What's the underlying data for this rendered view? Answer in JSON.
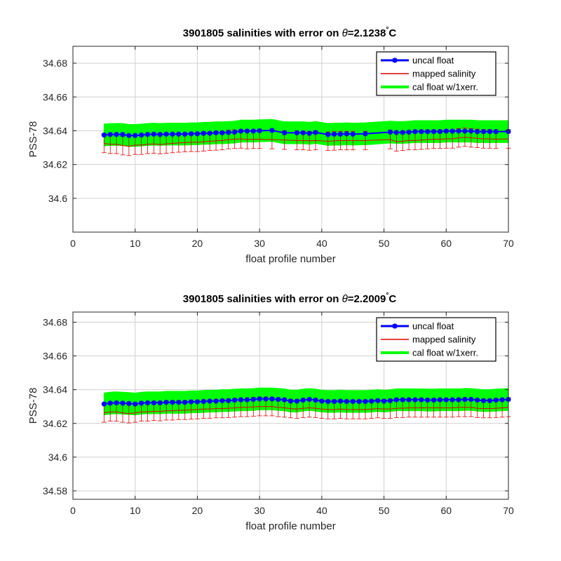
{
  "colors": {
    "uncal": "#0000ff",
    "mapped": "#e00000",
    "cal": "#00ff00",
    "grid": "#d0d0d0",
    "axis": "#262626"
  },
  "chart_data": [
    {
      "type": "line",
      "title_prefix": "3901805 salinities with error on ",
      "title_theta": "θ",
      "title_value": "=2.1238",
      "title_deg": "°",
      "title_unit": "C",
      "xlabel": "float profile number",
      "ylabel": "PSS-78",
      "xlim": [
        0,
        70
      ],
      "ylim": [
        34.58,
        34.69
      ],
      "xticks": [
        0,
        10,
        20,
        30,
        40,
        50,
        60,
        70
      ],
      "yticks": [
        34.6,
        34.62,
        34.64,
        34.66,
        34.68
      ],
      "ytick_labels": [
        "34.6",
        "34.62",
        "34.64",
        "34.66",
        "34.68"
      ],
      "grid": true,
      "legend": {
        "placement": "top-right",
        "entries": [
          "uncal float",
          "mapped salinity",
          "cal float w/1xerr."
        ]
      },
      "x": [
        5,
        6,
        7,
        8,
        9,
        10,
        11,
        12,
        13,
        14,
        15,
        16,
        17,
        18,
        19,
        20,
        21,
        22,
        23,
        24,
        25,
        26,
        27,
        28,
        29,
        30,
        32,
        34,
        36,
        37,
        38,
        39,
        41,
        42,
        43,
        44,
        45,
        47,
        51,
        52,
        53,
        54,
        55,
        56,
        57,
        58,
        59,
        60,
        61,
        62,
        63,
        64,
        65,
        66,
        67,
        68,
        70
      ],
      "uncal": [
        34.6375,
        34.6378,
        34.6378,
        34.6378,
        34.6372,
        34.6372,
        34.6375,
        34.6378,
        34.638,
        34.6378,
        34.638,
        34.638,
        34.638,
        34.638,
        34.6382,
        34.6382,
        34.6385,
        34.6385,
        34.6388,
        34.6388,
        34.639,
        34.6392,
        34.6398,
        34.6398,
        34.6398,
        34.64,
        34.6402,
        34.6388,
        34.6388,
        34.6388,
        34.6385,
        34.639,
        34.6378,
        34.638,
        34.638,
        34.6382,
        34.638,
        34.6382,
        34.6392,
        34.639,
        34.639,
        34.6392,
        34.6395,
        34.6395,
        34.6395,
        34.6395,
        34.6395,
        34.6398,
        34.6398,
        34.6398,
        34.6398,
        34.6398,
        34.6395,
        34.6395,
        34.6395,
        34.6395,
        34.6395
      ],
      "mapped": [
        34.6325,
        34.632,
        34.632,
        34.6312,
        34.6308,
        34.6315,
        34.6315,
        34.632,
        34.6322,
        34.6318,
        34.6322,
        34.6325,
        34.6328,
        34.633,
        34.6332,
        34.6332,
        34.6335,
        34.6338,
        34.634,
        34.6342,
        34.6348,
        34.635,
        34.6352,
        34.6348,
        34.635,
        34.635,
        34.6348,
        34.6345,
        34.6342,
        34.6342,
        34.634,
        34.6342,
        34.6338,
        34.634,
        34.6342,
        34.6342,
        34.6342,
        34.6342,
        34.6348,
        34.6335,
        34.6338,
        34.6342,
        34.6342,
        34.6345,
        34.6348,
        34.635,
        34.635,
        34.6352,
        34.6352,
        34.6358,
        34.6362,
        34.6358,
        34.6355,
        34.6352,
        34.6352,
        34.635,
        34.6352
      ],
      "mapped_err": 0.0055,
      "cal_err": 0.0065
    },
    {
      "type": "line",
      "title_prefix": "3901805 salinities with error on ",
      "title_theta": "θ",
      "title_value": "=2.2009",
      "title_deg": "°",
      "title_unit": "C",
      "xlabel": "float profile number",
      "ylabel": "PSS-78",
      "xlim": [
        0,
        70
      ],
      "ylim": [
        34.575,
        34.686
      ],
      "xticks": [
        0,
        10,
        20,
        30,
        40,
        50,
        60,
        70
      ],
      "yticks": [
        34.58,
        34.6,
        34.62,
        34.64,
        34.66,
        34.68
      ],
      "ytick_labels": [
        "34.58",
        "34.6",
        "34.62",
        "34.64",
        "34.66",
        "34.68"
      ],
      "grid": true,
      "legend": {
        "placement": "top-right",
        "entries": [
          "uncal float",
          "mapped salinity",
          "cal float w/1xerr."
        ]
      },
      "x": [
        5,
        6,
        7,
        8,
        9,
        10,
        11,
        12,
        13,
        14,
        15,
        16,
        17,
        18,
        19,
        20,
        21,
        22,
        23,
        24,
        25,
        26,
        27,
        28,
        29,
        30,
        31,
        32,
        33,
        34,
        35,
        36,
        37,
        38,
        39,
        40,
        41,
        42,
        43,
        44,
        45,
        46,
        47,
        48,
        49,
        50,
        51,
        52,
        53,
        54,
        55,
        56,
        57,
        58,
        59,
        60,
        61,
        62,
        63,
        64,
        65,
        66,
        67,
        68,
        69,
        70
      ],
      "uncal": [
        34.6315,
        34.632,
        34.6322,
        34.632,
        34.6318,
        34.6315,
        34.632,
        34.6322,
        34.6322,
        34.6322,
        34.6325,
        34.6325,
        34.6325,
        34.6325,
        34.6328,
        34.6328,
        34.633,
        34.6332,
        34.6332,
        34.6335,
        34.6335,
        34.6338,
        34.634,
        34.634,
        34.6342,
        34.6345,
        34.6345,
        34.6345,
        34.6342,
        34.634,
        34.6332,
        34.6332,
        34.6338,
        34.6342,
        34.6338,
        34.6332,
        34.633,
        34.633,
        34.6332,
        34.633,
        34.633,
        34.633,
        34.633,
        34.6332,
        34.6335,
        34.6332,
        34.6335,
        34.634,
        34.634,
        34.634,
        34.634,
        34.634,
        34.6338,
        34.6338,
        34.634,
        34.634,
        34.634,
        34.634,
        34.6342,
        34.6342,
        34.6338,
        34.6335,
        34.6335,
        34.6338,
        34.634,
        34.6342
      ],
      "mapped": [
        34.6262,
        34.6268,
        34.6268,
        34.6262,
        34.6258,
        34.6262,
        34.6268,
        34.6268,
        34.6272,
        34.627,
        34.6275,
        34.6275,
        34.6278,
        34.6278,
        34.628,
        34.6282,
        34.6285,
        34.6285,
        34.6288,
        34.6288,
        34.629,
        34.6292,
        34.6295,
        34.6295,
        34.6298,
        34.63,
        34.63,
        34.63,
        34.6295,
        34.6292,
        34.6288,
        34.6285,
        34.629,
        34.6292,
        34.629,
        34.6285,
        34.6282,
        34.6282,
        34.6285,
        34.6282,
        34.6282,
        34.6282,
        34.6282,
        34.6285,
        34.6288,
        34.6285,
        34.6285,
        34.629,
        34.629,
        34.6292,
        34.6292,
        34.6292,
        34.6292,
        34.6292,
        34.6292,
        34.6292,
        34.6292,
        34.6295,
        34.6295,
        34.6295,
        34.629,
        34.6288,
        34.6288,
        34.629,
        34.6292,
        34.6295
      ],
      "mapped_err": 0.0055,
      "cal_err": 0.0065
    }
  ]
}
